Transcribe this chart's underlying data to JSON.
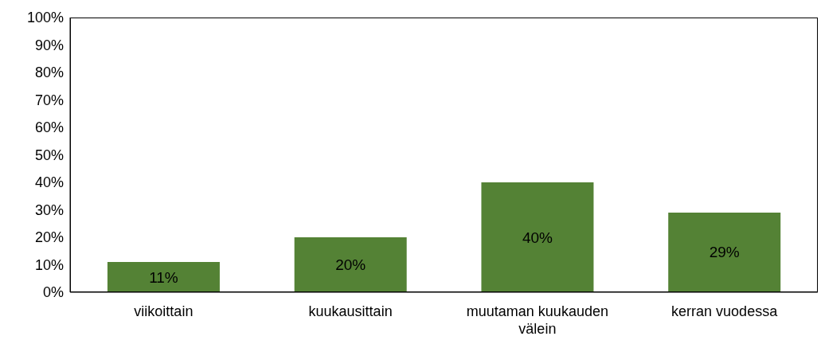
{
  "chart_data": {
    "type": "bar",
    "categories": [
      "viikoittain",
      "kuukausittain",
      "muutaman kuukauden välein",
      "kerran vuodessa"
    ],
    "values": [
      11,
      20,
      40,
      29
    ],
    "color": "#548235",
    "value_labels": [
      "11%",
      "20%",
      "40%",
      "29%"
    ],
    "ylim": [
      0,
      100
    ],
    "yticks": [
      {
        "value": 0,
        "label": "0%"
      },
      {
        "value": 10,
        "label": "10%"
      },
      {
        "value": 20,
        "label": "20%"
      },
      {
        "value": 30,
        "label": "30%"
      },
      {
        "value": 40,
        "label": "40%"
      },
      {
        "value": 50,
        "label": "50%"
      },
      {
        "value": 60,
        "label": "60%"
      },
      {
        "value": 70,
        "label": "70%"
      },
      {
        "value": 80,
        "label": "80%"
      },
      {
        "value": 90,
        "label": "90%"
      },
      {
        "value": 100,
        "label": "100%"
      }
    ],
    "grid": false
  }
}
